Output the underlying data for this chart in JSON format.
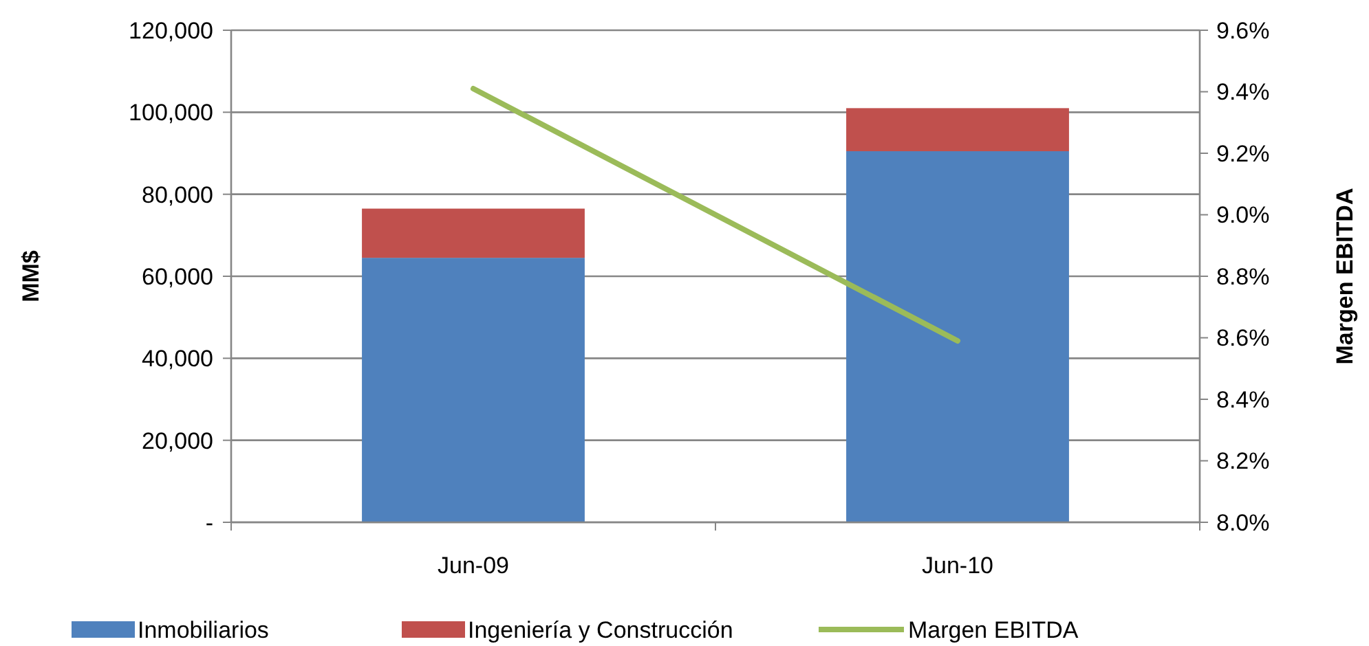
{
  "chart_data": {
    "type": "bar",
    "stacked": true,
    "categories": [
      "Jun-09",
      "Jun-10"
    ],
    "series": [
      {
        "name": "Inmobiliarios",
        "color": "#4f81bd",
        "values": [
          64500,
          90500
        ]
      },
      {
        "name": "Ingeniería y Construcción",
        "color": "#c0504d",
        "values": [
          12000,
          10500
        ]
      },
      {
        "name": "Margen EBITDA",
        "type": "line",
        "axis": "y2",
        "color": "#9bbb59",
        "values": [
          9.41,
          8.59
        ]
      }
    ],
    "ylabel": "MM$",
    "y2label": "Margen EBITDA",
    "ylim": [
      0,
      120000
    ],
    "yticks": [
      {
        "value": 0,
        "label": "-"
      },
      {
        "value": 20000,
        "label": "20,000"
      },
      {
        "value": 40000,
        "label": "40,000"
      },
      {
        "value": 60000,
        "label": "60,000"
      },
      {
        "value": 80000,
        "label": "80,000"
      },
      {
        "value": 100000,
        "label": "100,000"
      },
      {
        "value": 120000,
        "label": "120,000"
      }
    ],
    "y2lim": [
      8,
      9.6
    ],
    "y2ticks": [
      {
        "value": 8,
        "label": "8.0%"
      },
      {
        "value": 8.2,
        "label": "8.2%"
      },
      {
        "value": 8.4,
        "label": "8.4%"
      },
      {
        "value": 8.6,
        "label": "8.6%"
      },
      {
        "value": 8.8,
        "label": "8.8%"
      },
      {
        "value": 9,
        "label": "9.0%"
      },
      {
        "value": 9.2,
        "label": "9.2%"
      },
      {
        "value": 9.4,
        "label": "9.4%"
      },
      {
        "value": 9.6,
        "label": "9.6%"
      }
    ],
    "grid": "y",
    "legend": "bottom"
  }
}
